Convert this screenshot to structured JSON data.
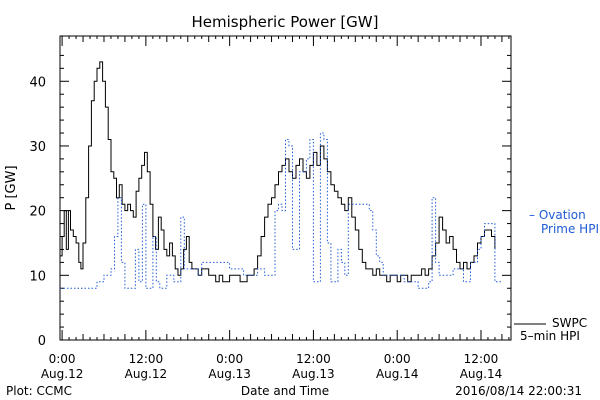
{
  "chart_data": {
    "type": "line",
    "title": "Hemispheric Power [GW]",
    "ylabel": "P [GW]",
    "xlabel": "Date and Time",
    "ylim": [
      0,
      47
    ],
    "xlim": [
      -0.3,
      64.3
    ],
    "x_unit": "hours since 2016-08-12 00:00",
    "grid": false,
    "legend_placement": "right",
    "yticks": [
      0,
      10,
      20,
      30,
      40
    ],
    "xticks": [
      {
        "x": 0,
        "time": "0:00",
        "date": "Aug.12"
      },
      {
        "x": 12,
        "time": "12:00",
        "date": "Aug.12"
      },
      {
        "x": 24,
        "time": "0:00",
        "date": "Aug.13"
      },
      {
        "x": 36,
        "time": "12:00",
        "date": "Aug.13"
      },
      {
        "x": 48,
        "time": "0:00",
        "date": "Aug.14"
      },
      {
        "x": 60,
        "time": "12:00",
        "date": "Aug.14"
      }
    ],
    "series": [
      {
        "name": "SWPC 5-min HPI",
        "color": "#000000",
        "style": "solid",
        "points": [
          [
            -0.3,
            13
          ],
          [
            0,
            16
          ],
          [
            0.3,
            20
          ],
          [
            0.6,
            14
          ],
          [
            0.9,
            20
          ],
          [
            1.2,
            17
          ],
          [
            1.6,
            16
          ],
          [
            2,
            15
          ],
          [
            2.4,
            12
          ],
          [
            2.7,
            11
          ],
          [
            3,
            15
          ],
          [
            3.4,
            22
          ],
          [
            3.8,
            30
          ],
          [
            4.2,
            37
          ],
          [
            4.6,
            40
          ],
          [
            5,
            42
          ],
          [
            5.4,
            43
          ],
          [
            5.8,
            40
          ],
          [
            6.2,
            36
          ],
          [
            6.6,
            31
          ],
          [
            7,
            26
          ],
          [
            7.4,
            25
          ],
          [
            7.8,
            22
          ],
          [
            8.2,
            24
          ],
          [
            8.6,
            21
          ],
          [
            9,
            20
          ],
          [
            9.4,
            21
          ],
          [
            9.8,
            20
          ],
          [
            10.2,
            19
          ],
          [
            10.6,
            23
          ],
          [
            11,
            25
          ],
          [
            11.4,
            27
          ],
          [
            11.8,
            29
          ],
          [
            12.2,
            26
          ],
          [
            12.6,
            21
          ],
          [
            13,
            16
          ],
          [
            13.4,
            14
          ],
          [
            13.8,
            19
          ],
          [
            14.2,
            17
          ],
          [
            14.6,
            14
          ],
          [
            15,
            13
          ],
          [
            15.4,
            15
          ],
          [
            15.8,
            13
          ],
          [
            16.2,
            11
          ],
          [
            16.6,
            10
          ],
          [
            17,
            11
          ],
          [
            17.4,
            14
          ],
          [
            17.8,
            16
          ],
          [
            18.2,
            12
          ],
          [
            18.6,
            11
          ],
          [
            19,
            11
          ],
          [
            19.5,
            10
          ],
          [
            20,
            11
          ],
          [
            20.5,
            11
          ],
          [
            21,
            10
          ],
          [
            21.5,
            10
          ],
          [
            22,
            9
          ],
          [
            22.5,
            10
          ],
          [
            23,
            9
          ],
          [
            23.5,
            9
          ],
          [
            24,
            10
          ],
          [
            24.5,
            10
          ],
          [
            25,
            10
          ],
          [
            25.5,
            9
          ],
          [
            26,
            9
          ],
          [
            26.5,
            10
          ],
          [
            27,
            10
          ],
          [
            27.5,
            11
          ],
          [
            28,
            13
          ],
          [
            28.5,
            16
          ],
          [
            29,
            19
          ],
          [
            29.5,
            21
          ],
          [
            30,
            22
          ],
          [
            30.5,
            24
          ],
          [
            31,
            26
          ],
          [
            31.5,
            27
          ],
          [
            32,
            28
          ],
          [
            32.5,
            26
          ],
          [
            33,
            25
          ],
          [
            33.5,
            27
          ],
          [
            34,
            28
          ],
          [
            34.5,
            26
          ],
          [
            35,
            25
          ],
          [
            35.5,
            27
          ],
          [
            36,
            29
          ],
          [
            36.5,
            27
          ],
          [
            37,
            30
          ],
          [
            37.5,
            28
          ],
          [
            38,
            26
          ],
          [
            38.5,
            24
          ],
          [
            39,
            23
          ],
          [
            39.5,
            22
          ],
          [
            40,
            21
          ],
          [
            40.5,
            20
          ],
          [
            41,
            22
          ],
          [
            41.5,
            19
          ],
          [
            42,
            17
          ],
          [
            42.5,
            14
          ],
          [
            43,
            12
          ],
          [
            43.5,
            11
          ],
          [
            44,
            11
          ],
          [
            44.5,
            10
          ],
          [
            45,
            11
          ],
          [
            45.5,
            10
          ],
          [
            46,
            10
          ],
          [
            46.5,
            9
          ],
          [
            47,
            10
          ],
          [
            47.5,
            10
          ],
          [
            48,
            9
          ],
          [
            48.5,
            10
          ],
          [
            49,
            10
          ],
          [
            49.5,
            9
          ],
          [
            50,
            10
          ],
          [
            50.5,
            10
          ],
          [
            51,
            10
          ],
          [
            51.5,
            11
          ],
          [
            52,
            10
          ],
          [
            52.5,
            11
          ],
          [
            53,
            13
          ],
          [
            53.5,
            15
          ],
          [
            54,
            19
          ],
          [
            54.5,
            17
          ],
          [
            55,
            15
          ],
          [
            55.5,
            16
          ],
          [
            56,
            14
          ],
          [
            56.5,
            12
          ],
          [
            57,
            11
          ],
          [
            57.5,
            12
          ],
          [
            58,
            11
          ],
          [
            58.5,
            12
          ],
          [
            59,
            13
          ],
          [
            59.5,
            15
          ],
          [
            60,
            16
          ],
          [
            60.5,
            17
          ],
          [
            61,
            17
          ],
          [
            61.5,
            16
          ],
          [
            62,
            14
          ]
        ]
      },
      {
        "name": "Ovation Prime HPI",
        "color": "#1f5bd6",
        "style": "dotted",
        "points": [
          [
            -0.3,
            8
          ],
          [
            0.4,
            8
          ],
          [
            1,
            8
          ],
          [
            2,
            8
          ],
          [
            3,
            8
          ],
          [
            4,
            8
          ],
          [
            5,
            9
          ],
          [
            5.5,
            9
          ],
          [
            6,
            10
          ],
          [
            7,
            11
          ],
          [
            7.5,
            16
          ],
          [
            8,
            22
          ],
          [
            8.5,
            12
          ],
          [
            9,
            8
          ],
          [
            9.5,
            8
          ],
          [
            10,
            8
          ],
          [
            10.5,
            14
          ],
          [
            11,
            9
          ],
          [
            11.5,
            21
          ],
          [
            12,
            8
          ],
          [
            12.5,
            8
          ],
          [
            13,
            16
          ],
          [
            13.5,
            9
          ],
          [
            14,
            8
          ],
          [
            14.5,
            8
          ],
          [
            15,
            10
          ],
          [
            15.5,
            10
          ],
          [
            16,
            9
          ],
          [
            16.5,
            9
          ],
          [
            17,
            19
          ],
          [
            17.5,
            11
          ],
          [
            18,
            11
          ],
          [
            18.5,
            11
          ],
          [
            19,
            11
          ],
          [
            19.5,
            10
          ],
          [
            20,
            12
          ],
          [
            20.5,
            12
          ],
          [
            21,
            12
          ],
          [
            22,
            12
          ],
          [
            23,
            12
          ],
          [
            24,
            11
          ],
          [
            25,
            11
          ],
          [
            26,
            10
          ],
          [
            27,
            10
          ],
          [
            27.5,
            10
          ],
          [
            28,
            11
          ],
          [
            28.5,
            11
          ],
          [
            29,
            10
          ],
          [
            29.5,
            10
          ],
          [
            30,
            10
          ],
          [
            30.5,
            20
          ],
          [
            31,
            21
          ],
          [
            31.5,
            20
          ],
          [
            32,
            31
          ],
          [
            32.5,
            30
          ],
          [
            33,
            14
          ],
          [
            33.5,
            14
          ],
          [
            34,
            26
          ],
          [
            34.5,
            26
          ],
          [
            35,
            28
          ],
          [
            35.5,
            31
          ],
          [
            36,
            9
          ],
          [
            36.5,
            9
          ],
          [
            37,
            32
          ],
          [
            37.5,
            31
          ],
          [
            38,
            15
          ],
          [
            38.5,
            9
          ],
          [
            39,
            9
          ],
          [
            39.5,
            14
          ],
          [
            40,
            12
          ],
          [
            40.5,
            10
          ],
          [
            41,
            21
          ],
          [
            42,
            21
          ],
          [
            43,
            21
          ],
          [
            44,
            20
          ],
          [
            44.5,
            17
          ],
          [
            45,
            13
          ],
          [
            45.5,
            12
          ],
          [
            46,
            10
          ],
          [
            47,
            10
          ],
          [
            48,
            10
          ],
          [
            49,
            9
          ],
          [
            50,
            9
          ],
          [
            51,
            8
          ],
          [
            52,
            8
          ],
          [
            52.5,
            9
          ],
          [
            53,
            22
          ],
          [
            53.5,
            12
          ],
          [
            54,
            10
          ],
          [
            55,
            10
          ],
          [
            56,
            11
          ],
          [
            57,
            11
          ],
          [
            57.5,
            9
          ],
          [
            58,
            9
          ],
          [
            58.5,
            12
          ],
          [
            59,
            12
          ],
          [
            59.5,
            14
          ],
          [
            60,
            16
          ],
          [
            60.5,
            18
          ],
          [
            61,
            18
          ],
          [
            62,
            9
          ],
          [
            63,
            9
          ]
        ]
      }
    ]
  },
  "legend": {
    "ovation_line1": "– Ovation",
    "ovation_line2": "Prime HPI",
    "swpc_line1": "SWPC",
    "swpc_line2": "5–min HPI"
  },
  "footer": {
    "plot_label": "Plot: CCMC",
    "timestamp": "2016/08/14 22:00:31"
  }
}
